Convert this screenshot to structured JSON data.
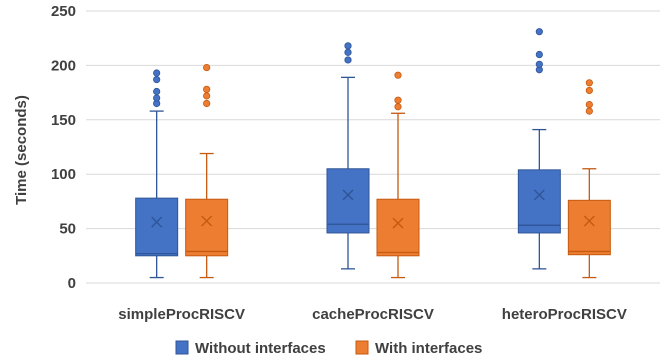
{
  "chart_data": {
    "type": "box",
    "ylabel": "Time (seconds)",
    "ylim": [
      0,
      250
    ],
    "yticks": [
      0,
      50,
      100,
      150,
      200,
      250
    ],
    "grid": "horizontal",
    "legend_position": "bottom",
    "categories": [
      "simpleProcRISCV",
      "cacheProcRISCV",
      "heteroProcRISCV"
    ],
    "series": [
      {
        "name": "Without interfaces",
        "color": "#4472c4",
        "stroke": "#2f5597",
        "boxes": [
          {
            "min": 5,
            "q1": 25,
            "median": 27,
            "q3": 78,
            "max": 158,
            "mean": 56,
            "outliers": [
              165,
              170,
              176,
              187,
              193
            ]
          },
          {
            "min": 13,
            "q1": 46,
            "median": 54,
            "q3": 105,
            "max": 189,
            "mean": 81,
            "outliers": [
              205,
              212,
              218
            ]
          },
          {
            "min": 13,
            "q1": 46,
            "median": 53,
            "q3": 104,
            "max": 141,
            "mean": 81,
            "outliers": [
              196,
              201,
              210,
              231
            ]
          }
        ]
      },
      {
        "name": "With interfaces",
        "color": "#ed7d31",
        "stroke": "#c55a11",
        "boxes": [
          {
            "min": 5,
            "q1": 25,
            "median": 29,
            "q3": 77,
            "max": 119,
            "mean": 57,
            "outliers": [
              165,
              172,
              178,
              198
            ]
          },
          {
            "min": 5,
            "q1": 25,
            "median": 28,
            "q3": 77,
            "max": 156,
            "mean": 55,
            "outliers": [
              162,
              168,
              191
            ]
          },
          {
            "min": 5,
            "q1": 26,
            "median": 29,
            "q3": 76,
            "max": 105,
            "mean": 57,
            "outliers": [
              158,
              164,
              177,
              184
            ]
          }
        ]
      }
    ]
  }
}
